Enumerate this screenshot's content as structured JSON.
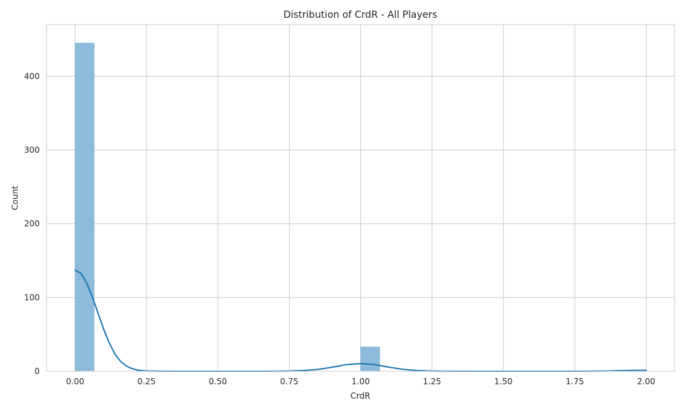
{
  "chart_data": {
    "type": "bar",
    "subtype": "histogram_with_kde",
    "title": "Distribution of CrdR - All Players",
    "xlabel": "CrdR",
    "ylabel": "Count",
    "xlim": [
      -0.1,
      2.1
    ],
    "ylim": [
      0,
      470
    ],
    "x_ticks": [
      0.0,
      0.25,
      0.5,
      0.75,
      1.0,
      1.25,
      1.5,
      1.75,
      2.0
    ],
    "x_tick_labels": [
      "0.00",
      "0.25",
      "0.50",
      "0.75",
      "1.00",
      "1.25",
      "1.50",
      "1.75",
      "2.00"
    ],
    "y_ticks": [
      0,
      100,
      200,
      300,
      400
    ],
    "y_tick_labels": [
      "0",
      "100",
      "200",
      "300",
      "400"
    ],
    "grid": true,
    "bins": [
      {
        "x0": 0.0,
        "x1": 0.0667,
        "count": 445
      },
      {
        "x0": 1.0,
        "x1": 1.0667,
        "count": 33
      },
      {
        "x0": 1.9333,
        "x1": 2.0,
        "count": 1
      }
    ],
    "kde": {
      "x": [
        0.0,
        0.02,
        0.04,
        0.06,
        0.08,
        0.1,
        0.12,
        0.14,
        0.16,
        0.18,
        0.2,
        0.22,
        0.25,
        0.3,
        0.4,
        0.5,
        0.6,
        0.7,
        0.75,
        0.8,
        0.85,
        0.9,
        0.95,
        1.0,
        1.05,
        1.1,
        1.15,
        1.2,
        1.25,
        1.3,
        1.4,
        1.5,
        1.6,
        1.7,
        1.8,
        1.85,
        1.9,
        1.95,
        2.0
      ],
      "y": [
        137,
        133,
        120,
        101,
        79,
        57,
        38,
        23,
        13,
        7,
        3.5,
        1.5,
        0.5,
        0.1,
        0,
        0,
        0,
        0.1,
        0.3,
        1.0,
        2.5,
        5.5,
        9,
        10.5,
        9,
        5.5,
        2.5,
        1.0,
        0.3,
        0.1,
        0,
        0,
        0,
        0,
        0.1,
        0.3,
        0.8,
        1.2,
        1.4
      ]
    },
    "colors": {
      "bar_fill": "#8dbbdb",
      "bar_stroke": "#7aaed4",
      "kde_line": "#1f77b4",
      "grid": "#cccccc",
      "axes_edge": "#cccccc"
    }
  }
}
